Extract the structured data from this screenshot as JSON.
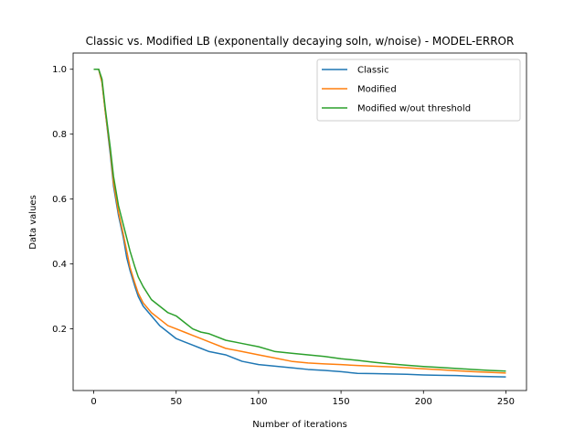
{
  "chart_data": {
    "type": "line",
    "title": "Classic vs. Modified LB (exponentally decaying soln, w/noise) - MODEL-ERROR",
    "xlabel": "Number of iterations",
    "ylabel": "Data values",
    "xlim": [
      -12.5,
      262.5
    ],
    "ylim": [
      0.01,
      1.05
    ],
    "xticks": [
      0,
      50,
      100,
      150,
      200,
      250
    ],
    "yticks": [
      0.2,
      0.4,
      0.6,
      0.8,
      1.0
    ],
    "xtick_labels": [
      "0",
      "50",
      "100",
      "150",
      "200",
      "250"
    ],
    "ytick_labels": [
      "0.2",
      "0.4",
      "0.6",
      "0.8",
      "1.0"
    ],
    "grid": false,
    "legend_position": "top-right",
    "series": [
      {
        "name": "Classic",
        "color": "#1f77b4",
        "x": [
          0,
          3,
          5,
          7,
          10,
          12,
          15,
          18,
          20,
          22,
          25,
          27,
          30,
          35,
          40,
          45,
          50,
          55,
          60,
          65,
          70,
          80,
          90,
          100,
          110,
          120,
          130,
          140,
          150,
          160,
          170,
          180,
          190,
          200,
          210,
          220,
          230,
          240,
          250
        ],
        "values": [
          1.0,
          1.0,
          0.96,
          0.87,
          0.74,
          0.64,
          0.55,
          0.48,
          0.42,
          0.38,
          0.33,
          0.3,
          0.27,
          0.24,
          0.21,
          0.19,
          0.17,
          0.16,
          0.15,
          0.14,
          0.13,
          0.12,
          0.1,
          0.09,
          0.085,
          0.08,
          0.075,
          0.072,
          0.068,
          0.063,
          0.062,
          0.061,
          0.06,
          0.058,
          0.057,
          0.056,
          0.054,
          0.053,
          0.052
        ]
      },
      {
        "name": "Modified",
        "color": "#ff7f0e",
        "x": [
          0,
          3,
          5,
          7,
          10,
          12,
          15,
          18,
          20,
          22,
          25,
          27,
          30,
          35,
          40,
          45,
          50,
          55,
          60,
          65,
          70,
          80,
          90,
          100,
          110,
          120,
          130,
          140,
          150,
          160,
          170,
          180,
          190,
          200,
          210,
          220,
          230,
          240,
          250
        ],
        "values": [
          1.0,
          1.0,
          0.96,
          0.87,
          0.75,
          0.65,
          0.56,
          0.49,
          0.44,
          0.39,
          0.34,
          0.31,
          0.28,
          0.25,
          0.23,
          0.21,
          0.2,
          0.19,
          0.18,
          0.17,
          0.16,
          0.14,
          0.13,
          0.12,
          0.11,
          0.1,
          0.095,
          0.092,
          0.09,
          0.087,
          0.085,
          0.083,
          0.08,
          0.077,
          0.074,
          0.071,
          0.068,
          0.066,
          0.064
        ]
      },
      {
        "name": "Modified w/out threshold",
        "color": "#2ca02c",
        "x": [
          0,
          3,
          5,
          7,
          10,
          12,
          15,
          18,
          20,
          22,
          25,
          27,
          30,
          35,
          40,
          45,
          50,
          55,
          60,
          65,
          70,
          80,
          90,
          100,
          110,
          120,
          130,
          140,
          150,
          160,
          170,
          180,
          190,
          200,
          210,
          220,
          230,
          240,
          250
        ],
        "values": [
          1.0,
          1.0,
          0.97,
          0.88,
          0.76,
          0.67,
          0.58,
          0.52,
          0.48,
          0.44,
          0.39,
          0.36,
          0.33,
          0.29,
          0.27,
          0.25,
          0.24,
          0.22,
          0.2,
          0.19,
          0.185,
          0.165,
          0.155,
          0.145,
          0.13,
          0.125,
          0.12,
          0.115,
          0.108,
          0.103,
          0.097,
          0.092,
          0.088,
          0.084,
          0.081,
          0.078,
          0.075,
          0.072,
          0.07
        ]
      }
    ]
  }
}
